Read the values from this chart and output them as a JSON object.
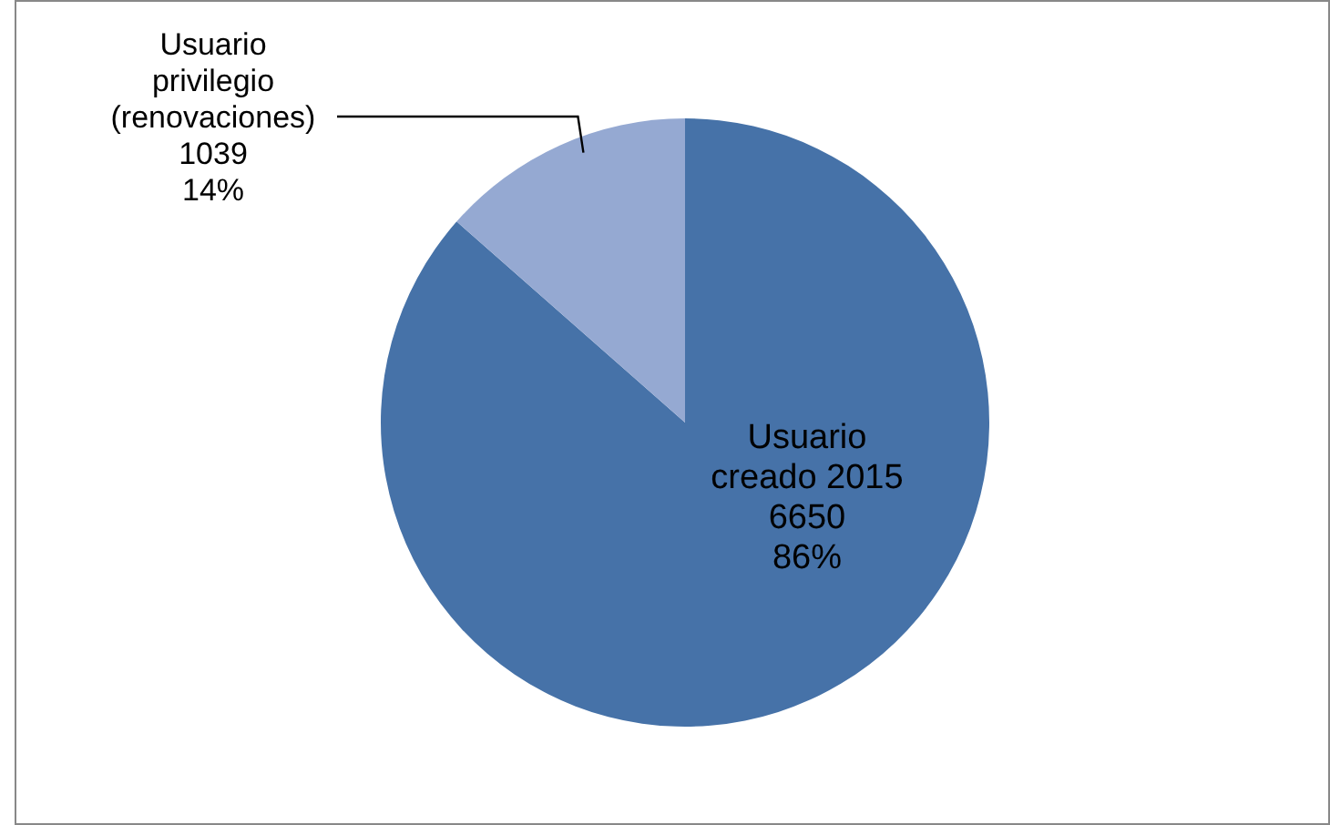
{
  "chart_data": {
    "type": "pie",
    "categories": [
      "Usuario creado 2015",
      "Usuario privilegio (renovaciones)"
    ],
    "values": [
      6650,
      1039
    ],
    "colors": [
      "#4672a8",
      "#95a9d2"
    ],
    "value_labels": [
      "6650\n86%",
      "1039\n14%"
    ]
  }
}
